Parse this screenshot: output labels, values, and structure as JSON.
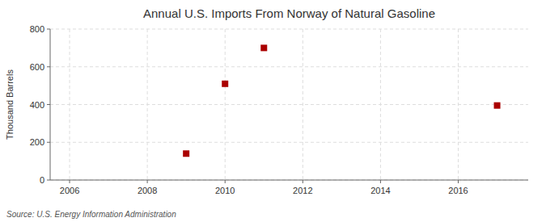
{
  "chart_data": {
    "type": "scatter",
    "title": "Annual U.S. Imports From Norway of Natural Gasoline",
    "y_label": "Thousand Barrels",
    "annotations": [
      "Source: U.S. Energy Information Administration"
    ],
    "x": [
      2009,
      2010,
      2011,
      2017
    ],
    "values": [
      140,
      510,
      700,
      395
    ],
    "color": "#aa0000",
    "marker": "square",
    "xlim": [
      2005.5,
      2017.8
    ],
    "ylim": [
      0,
      800
    ],
    "xticks": [
      2006,
      2008,
      2010,
      2012,
      2014,
      2016
    ],
    "yticks": [
      0,
      200,
      400,
      600,
      800
    ],
    "grid": true
  }
}
